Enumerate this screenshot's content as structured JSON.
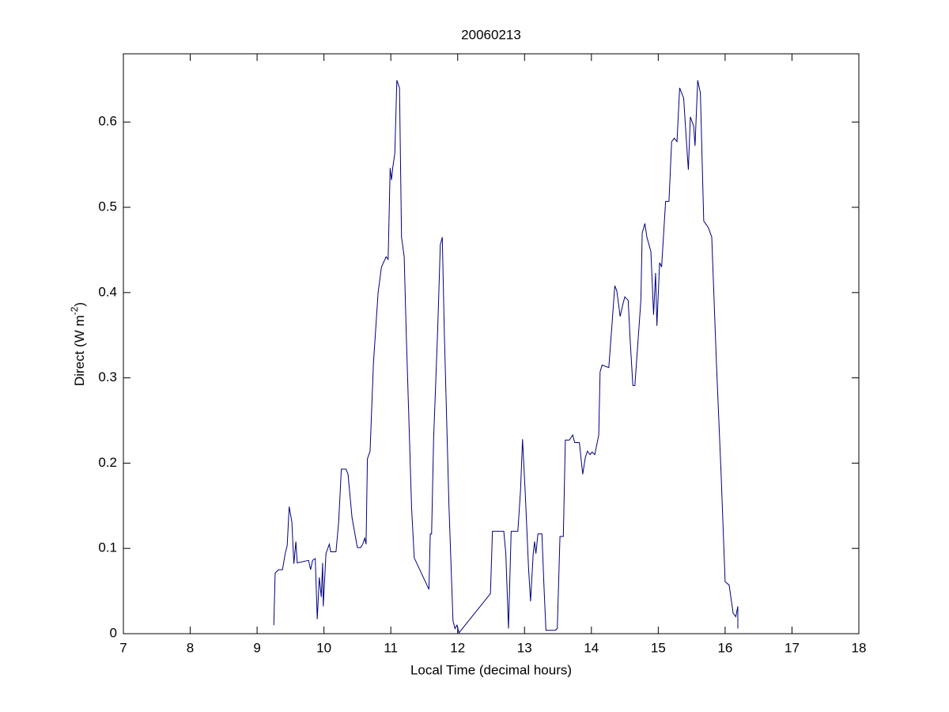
{
  "chart_data": {
    "type": "line",
    "title": "20060213",
    "x_label": "Local Time (decimal hours)",
    "y_label_parts": [
      "Direct (W m",
      "-2",
      ")"
    ],
    "xlim": [
      7,
      18
    ],
    "ylim": [
      0,
      0.68
    ],
    "xticks": [
      7,
      8,
      9,
      10,
      11,
      12,
      13,
      14,
      15,
      16,
      17,
      18
    ],
    "yticks": [
      0,
      0.1,
      0.2,
      0.3,
      0.4,
      0.5,
      0.6
    ],
    "series": [
      {
        "color": "#000080",
        "x": [
          9.25,
          9.27,
          9.32,
          9.38,
          9.42,
          9.45,
          9.48,
          9.52,
          9.55,
          9.58,
          9.6,
          9.77,
          9.8,
          9.83,
          9.87,
          9.9,
          9.93,
          9.96,
          9.98,
          9.99,
          10.03,
          10.08,
          10.1,
          10.18,
          10.22,
          10.26,
          10.33,
          10.36,
          10.42,
          10.5,
          10.55,
          10.58,
          10.61,
          10.63,
          10.65,
          10.69,
          10.74,
          10.81,
          10.86,
          10.93,
          10.96,
          10.99,
          11.01,
          11.03,
          11.06,
          11.09,
          11.13,
          11.16,
          11.2,
          11.23,
          11.31,
          11.35,
          11.57,
          11.59,
          11.61,
          11.64,
          11.7,
          11.74,
          11.77,
          11.8,
          11.87,
          11.93,
          11.96,
          11.99,
          12.02,
          12.07,
          12.49,
          12.52,
          12.69,
          12.72,
          12.76,
          12.8,
          12.9,
          12.94,
          12.97,
          13.01,
          13.06,
          13.09,
          13.13,
          13.15,
          13.17,
          13.2,
          13.26,
          13.29,
          13.32,
          13.46,
          13.49,
          13.53,
          13.58,
          13.61,
          13.67,
          13.72,
          13.75,
          13.82,
          13.87,
          13.91,
          13.94,
          13.98,
          14.01,
          14.05,
          14.11,
          14.13,
          14.16,
          14.26,
          14.3,
          14.35,
          14.38,
          14.43,
          14.47,
          14.5,
          14.55,
          14.58,
          14.62,
          14.65,
          14.69,
          14.74,
          14.76,
          14.8,
          14.83,
          14.89,
          14.93,
          14.96,
          14.98,
          15.02,
          15.05,
          15.11,
          15.16,
          15.2,
          15.24,
          15.28,
          15.32,
          15.38,
          15.41,
          15.45,
          15.48,
          15.53,
          15.55,
          15.59,
          15.63,
          15.68,
          15.75,
          15.8,
          15.87,
          15.94,
          16.0,
          16.06,
          16.12,
          16.16,
          16.19,
          16.19
        ],
        "values": [
          0.01,
          0.071,
          0.075,
          0.075,
          0.094,
          0.103,
          0.149,
          0.131,
          0.082,
          0.108,
          0.083,
          0.086,
          0.075,
          0.086,
          0.088,
          0.017,
          0.066,
          0.043,
          0.083,
          0.032,
          0.094,
          0.105,
          0.096,
          0.096,
          0.131,
          0.193,
          0.193,
          0.187,
          0.136,
          0.101,
          0.101,
          0.105,
          0.112,
          0.105,
          0.205,
          0.214,
          0.317,
          0.4,
          0.43,
          0.442,
          0.439,
          0.546,
          0.532,
          0.547,
          0.563,
          0.649,
          0.64,
          0.465,
          0.442,
          0.354,
          0.149,
          0.089,
          0.052,
          0.117,
          0.117,
          0.228,
          0.354,
          0.456,
          0.465,
          0.354,
          0.149,
          0.015,
          0.006,
          0.01,
          0.001,
          0.006,
          0.047,
          0.12,
          0.12,
          0.094,
          0.006,
          0.12,
          0.12,
          0.168,
          0.228,
          0.166,
          0.077,
          0.038,
          0.094,
          0.108,
          0.094,
          0.117,
          0.117,
          0.057,
          0.004,
          0.004,
          0.006,
          0.114,
          0.114,
          0.227,
          0.227,
          0.233,
          0.224,
          0.224,
          0.187,
          0.207,
          0.214,
          0.21,
          0.213,
          0.21,
          0.233,
          0.307,
          0.315,
          0.312,
          0.354,
          0.408,
          0.402,
          0.372,
          0.386,
          0.395,
          0.391,
          0.344,
          0.291,
          0.291,
          0.335,
          0.391,
          0.47,
          0.481,
          0.465,
          0.448,
          0.374,
          0.423,
          0.361,
          0.435,
          0.43,
          0.507,
          0.507,
          0.577,
          0.581,
          0.577,
          0.64,
          0.628,
          0.591,
          0.544,
          0.606,
          0.595,
          0.572,
          0.649,
          0.634,
          0.484,
          0.476,
          0.465,
          0.317,
          0.187,
          0.061,
          0.057,
          0.024,
          0.02,
          0.032,
          0.006
        ]
      }
    ]
  }
}
